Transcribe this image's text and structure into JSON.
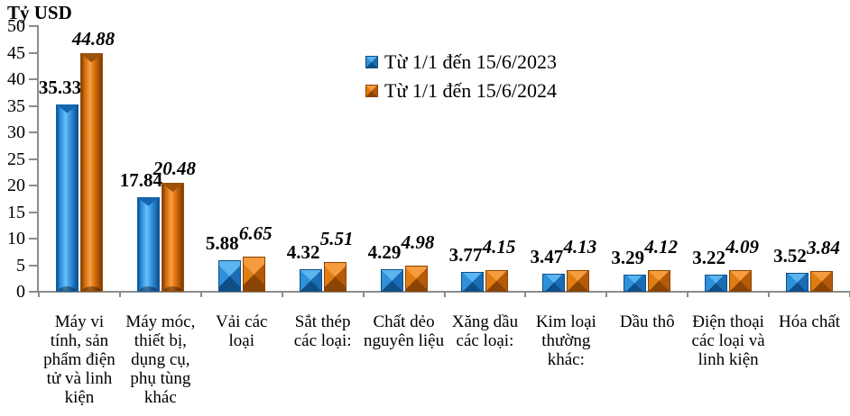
{
  "chart_data": {
    "type": "bar",
    "unit_label": "Tỷ USD",
    "categories": [
      "Máy vi tính, sản phẩm điện tử và linh kiện",
      "Máy móc, thiết bị, dụng cụ, phụ tùng khác",
      "Vải các loại",
      "Sắt thép các loại:",
      "Chất dẻo nguyên liệu",
      "Xăng dầu các loại:",
      "Kim loại thường khác:",
      "Dầu thô",
      "Điện thoại các loại và linh kiện",
      "Hóa chất"
    ],
    "series": [
      {
        "name": "Từ 1/1 đến 15/6/2023",
        "color": "#2E96E0",
        "label_style": "bold",
        "values": [
          35.33,
          17.84,
          5.88,
          4.32,
          4.29,
          3.77,
          3.47,
          3.29,
          3.22,
          3.52
        ]
      },
      {
        "name": "Từ 1/1 đến 15/6/2024",
        "color": "#E8770E",
        "label_style": "bold-italic",
        "values": [
          44.88,
          20.48,
          6.65,
          5.51,
          4.98,
          4.15,
          4.13,
          4.12,
          4.09,
          3.84
        ]
      }
    ],
    "ylim": [
      0,
      50
    ],
    "yticks": [
      0,
      5,
      10,
      15,
      20,
      25,
      30,
      35,
      40,
      45,
      50
    ],
    "grid": false,
    "legend_position": "top-center",
    "value_labels_shown": true,
    "axis_color": "#8C8C8C",
    "text_color": "#000000",
    "background": "#FFFFFF"
  }
}
